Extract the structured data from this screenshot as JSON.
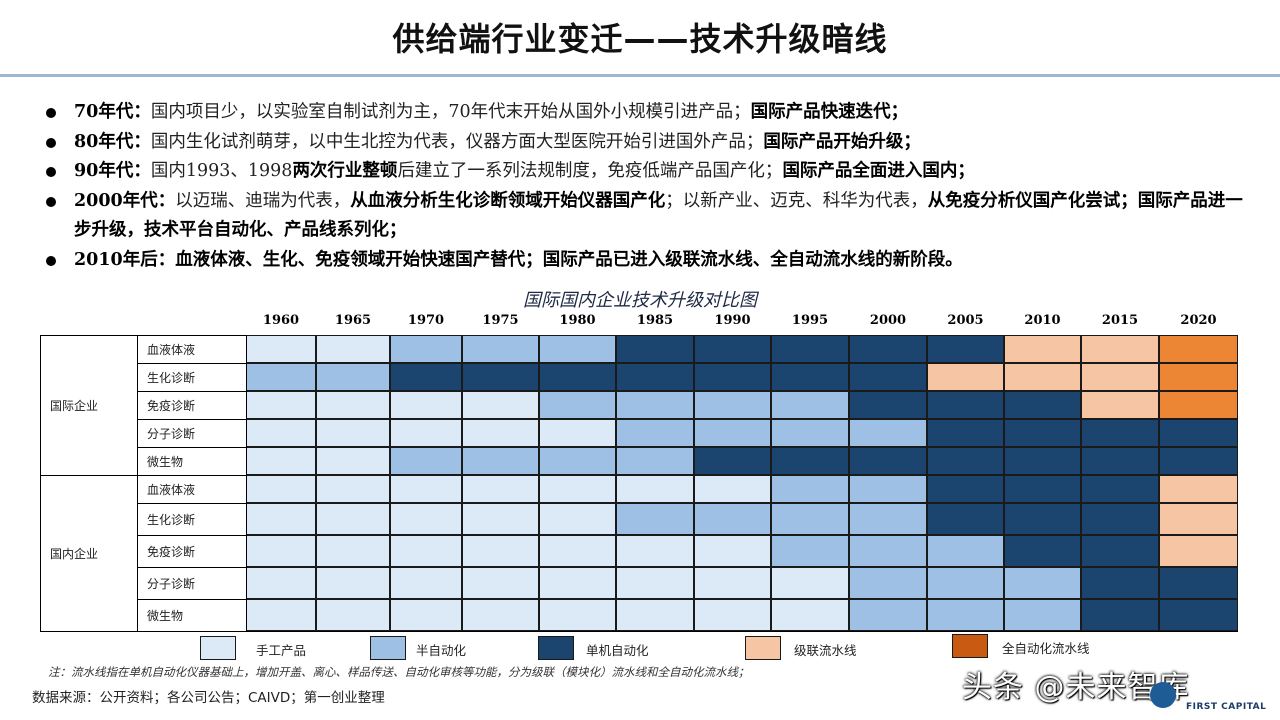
{
  "title": "供给端行业变迁——技术升级暗线",
  "bullets": [
    {
      "segments": [
        {
          "t": "70年代：",
          "b": true
        },
        {
          "t": "国内项目少，以实验室自制试剂为主，70年代末开始从国外小规模引进产品；",
          "b": false
        },
        {
          "t": "国际产品快速迭代；",
          "b": true
        }
      ]
    },
    {
      "segments": [
        {
          "t": "80年代：",
          "b": true
        },
        {
          "t": "国内生化试剂萌芽，以中生北控为代表，仪器方面大型医院开始引进国外产品；",
          "b": false
        },
        {
          "t": "国际产品开始升级；",
          "b": true
        }
      ]
    },
    {
      "segments": [
        {
          "t": "90年代：",
          "b": true
        },
        {
          "t": "国内1993、1998",
          "b": false
        },
        {
          "t": "两次行业整顿",
          "b": true
        },
        {
          "t": "后建立了一系列法规制度，免疫低端产品国产化；",
          "b": false
        },
        {
          "t": "国际产品全面进入国内；",
          "b": true
        }
      ]
    },
    {
      "segments": [
        {
          "t": "2000年代：",
          "b": true
        },
        {
          "t": "以迈瑞、迪瑞为代表，",
          "b": false
        },
        {
          "t": "从血液分析生化诊断领域开始仪器国产化",
          "b": true
        },
        {
          "t": "；以新产业、迈克、科华为代表，",
          "b": false
        },
        {
          "t": "从免疫分析仪国产化尝试；",
          "b": true
        },
        {
          "t": "国际产品进一步升级，技术平台自动化、产品线系列化；",
          "b": true
        }
      ]
    },
    {
      "segments": [
        {
          "t": "2010年后：",
          "b": true
        },
        {
          "t": "血液体液、生化、免疫领域开始快速国产替代；国际产品已进入级联流水线、全自动流水线的新阶段。",
          "b": true
        }
      ]
    }
  ],
  "chart_data": {
    "type": "heatmap",
    "title": "国际国内企业技术升级对比图",
    "years": [
      "1960",
      "1965",
      "1970",
      "1975",
      "1980",
      "1985",
      "1990",
      "1995",
      "2000",
      "2005",
      "2010",
      "2015",
      "2020"
    ],
    "levels": [
      {
        "name": "手工产品",
        "color": "#dce9f6"
      },
      {
        "name": "半自动化",
        "color": "#9dc0e4"
      },
      {
        "name": "单机自动化",
        "color": "#1b446e"
      },
      {
        "name": "级联流水线",
        "color": "#f6c5a3"
      },
      {
        "name": "全自动化流水线",
        "color": "#ec8534"
      }
    ],
    "groups": [
      {
        "name": "国际企业",
        "rows": [
          {
            "category": "血液体液",
            "values": [
              0,
              0,
              1,
              1,
              1,
              2,
              2,
              2,
              2,
              2,
              3,
              3,
              4
            ]
          },
          {
            "category": "生化诊断",
            "values": [
              1,
              1,
              2,
              2,
              2,
              2,
              2,
              2,
              2,
              3,
              3,
              3,
              4
            ]
          },
          {
            "category": "免疫诊断",
            "values": [
              0,
              0,
              0,
              0,
              1,
              1,
              1,
              1,
              2,
              2,
              2,
              3,
              4
            ]
          },
          {
            "category": "分子诊断",
            "values": [
              0,
              0,
              0,
              0,
              0,
              1,
              1,
              1,
              1,
              2,
              2,
              2,
              2
            ]
          },
          {
            "category": "微生物",
            "values": [
              0,
              0,
              1,
              1,
              1,
              1,
              2,
              2,
              2,
              2,
              2,
              2,
              2
            ]
          }
        ]
      },
      {
        "name": "国内企业",
        "rows": [
          {
            "category": "血液体液",
            "values": [
              0,
              0,
              0,
              0,
              0,
              0,
              0,
              1,
              1,
              2,
              2,
              2,
              3
            ]
          },
          {
            "category": "生化诊断",
            "values": [
              0,
              0,
              0,
              0,
              0,
              1,
              1,
              1,
              1,
              2,
              2,
              2,
              3
            ]
          },
          {
            "category": "免疫诊断",
            "values": [
              0,
              0,
              0,
              0,
              0,
              0,
              0,
              1,
              1,
              1,
              2,
              2,
              3
            ]
          },
          {
            "category": "分子诊断",
            "values": [
              0,
              0,
              0,
              0,
              0,
              0,
              0,
              0,
              1,
              1,
              1,
              2,
              2
            ]
          },
          {
            "category": "微生物",
            "values": [
              0,
              0,
              0,
              0,
              0,
              0,
              0,
              0,
              1,
              1,
              1,
              2,
              2
            ]
          }
        ]
      }
    ]
  },
  "note": "注：流水线指在单机自动化仪器基础上，增加开盖、离心、样品传送、自动化审核等功能，分为级联（模块化）流水线和全自动化流水线；",
  "source": "数据来源：公开资料；各公司公告；CAIVD；第一创业整理",
  "watermark": "头条 @未来智库",
  "logo_text": "FIRST CAPITAL"
}
